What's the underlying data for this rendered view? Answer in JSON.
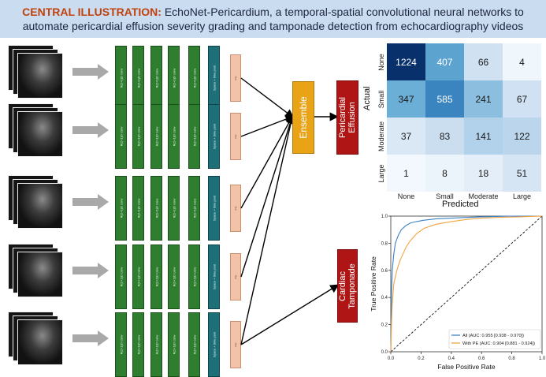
{
  "header": {
    "tag": "CENTRAL ILLUSTRATION:",
    "line1": "EchoNet-Pericardium, a temporal-spatial convolutional neural networks to",
    "line2": "automate pericardial effusion severity grading and tamponade detection from echocardiography videos"
  },
  "colors": {
    "banner": "#c9dcf0",
    "tag": "#c2410c",
    "conv_block": "#2f7d2f",
    "pool_block": "#1d6f78",
    "fc_block": "#f2c3a9",
    "ensemble": "#e8a317",
    "output": "#b01515",
    "roc_all": "#3b82c4",
    "roc_pe": "#f2a444"
  },
  "pipeline": {
    "conv_label": "R(2+1)D conv",
    "pool_label": "Space + time pool",
    "fc_label": "FC",
    "ensemble_label": "Ensemble",
    "pe_output": "Pericardial Effusion",
    "tamponade_output": "Cardiac Tamponade"
  },
  "confusion_matrix": {
    "ylabel": "Actual",
    "xlabel": "Predicted",
    "labels": [
      "None",
      "Small",
      "Moderate",
      "Large"
    ],
    "values": [
      [
        1224,
        407,
        66,
        4
      ],
      [
        347,
        585,
        241,
        67
      ],
      [
        37,
        83,
        141,
        122
      ],
      [
        1,
        8,
        18,
        51
      ]
    ]
  },
  "chart_data": {
    "type": "line",
    "xlabel": "False Positive Rate",
    "ylabel": "True Positive Rate",
    "xlim": [
      0,
      1
    ],
    "ylim": [
      0,
      1
    ],
    "xticks": [
      "0.0",
      "0.2",
      "0.4",
      "0.6",
      "0.8",
      "1.0"
    ],
    "yticks": [
      "0.0",
      "0.2",
      "0.4",
      "0.6",
      "0.8",
      "1.0"
    ],
    "legend_position": "lower-right",
    "series": [
      {
        "name": "All (AUC: 0.955 [0.938 - 0.970])",
        "color": "#3b82c4",
        "x": [
          0,
          0.005,
          0.01,
          0.02,
          0.03,
          0.05,
          0.07,
          0.1,
          0.13,
          0.17,
          0.22,
          0.3,
          0.4,
          0.5,
          0.6,
          0.8,
          1.0
        ],
        "y": [
          0,
          0.45,
          0.6,
          0.72,
          0.8,
          0.86,
          0.9,
          0.93,
          0.95,
          0.96,
          0.97,
          0.98,
          0.985,
          0.99,
          0.995,
          1.0,
          1.0
        ]
      },
      {
        "name": "With PE (AUC: 0.904 [0.881 - 0.924])",
        "color": "#f2a444",
        "x": [
          0,
          0.005,
          0.01,
          0.02,
          0.04,
          0.06,
          0.08,
          0.1,
          0.13,
          0.17,
          0.22,
          0.3,
          0.4,
          0.5,
          0.6,
          0.7,
          0.85,
          1.0
        ],
        "y": [
          0,
          0.22,
          0.35,
          0.5,
          0.6,
          0.67,
          0.72,
          0.77,
          0.82,
          0.87,
          0.91,
          0.94,
          0.96,
          0.975,
          0.985,
          0.99,
          0.995,
          1.0
        ]
      }
    ]
  }
}
